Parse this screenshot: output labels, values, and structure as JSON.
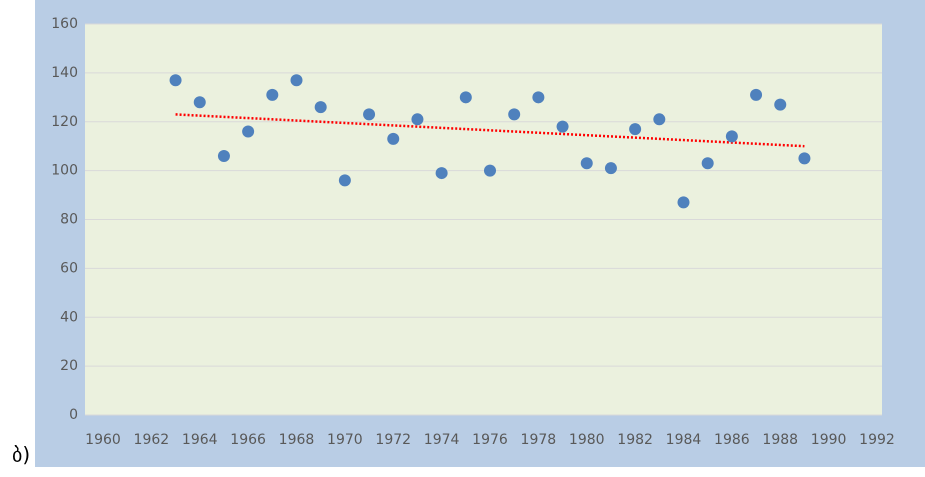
{
  "label": "ბ)",
  "chart_data": {
    "type": "scatter",
    "x": [
      1963,
      1964,
      1965,
      1966,
      1967,
      1968,
      1969,
      1970,
      1971,
      1972,
      1973,
      1974,
      1975,
      1976,
      1977,
      1978,
      1979,
      1980,
      1981,
      1982,
      1983,
      1984,
      1985,
      1986,
      1987,
      1988,
      1989
    ],
    "values": [
      137,
      128,
      106,
      116,
      131,
      137,
      126,
      96,
      123,
      113,
      121,
      99,
      130,
      100,
      123,
      130,
      118,
      103,
      101,
      117,
      121,
      87,
      103,
      114,
      131,
      127,
      105
    ],
    "color": "#4f81bd",
    "trendline": {
      "x": [
        1963,
        1989
      ],
      "values": [
        123,
        110
      ],
      "color": "#ff0000"
    },
    "xlim": [
      1960,
      1992
    ],
    "xticks": [
      1960,
      1962,
      1964,
      1966,
      1968,
      1970,
      1972,
      1974,
      1976,
      1978,
      1980,
      1982,
      1984,
      1986,
      1988,
      1990,
      1992
    ],
    "ylim": [
      0,
      160
    ],
    "yticks": [
      0,
      20,
      40,
      60,
      80,
      100,
      120,
      140,
      160
    ],
    "grid": true
  }
}
